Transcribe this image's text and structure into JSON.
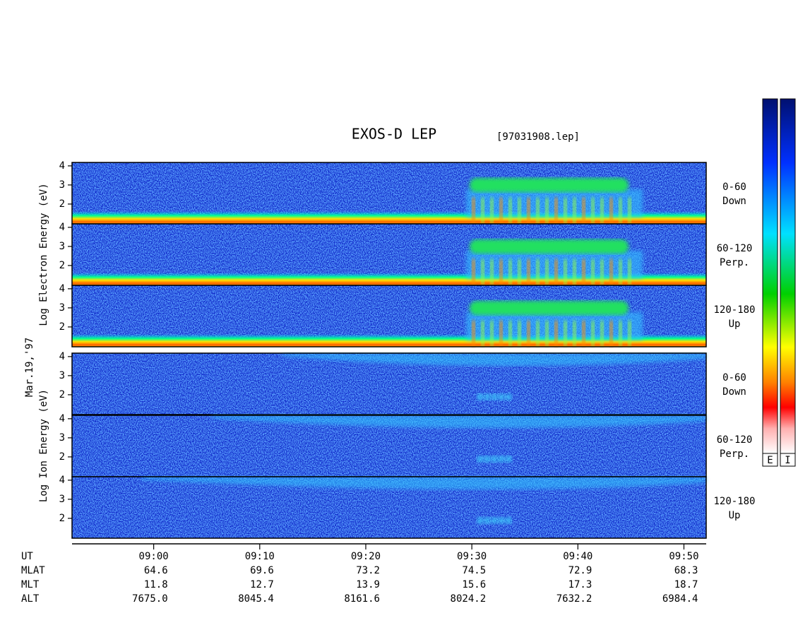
{
  "chart_data": {
    "type": "spectrogram",
    "title": "EXOS-D LEP",
    "subtitle": "[97031908.lep]",
    "date_label": "Mar.19,'97",
    "xlim": [
      532.3,
      592.1
    ],
    "xticks": [
      {
        "value": 540,
        "label": "09:00"
      },
      {
        "value": 550,
        "label": "09:10"
      },
      {
        "value": 560,
        "label": "09:20"
      },
      {
        "value": 570,
        "label": "09:30"
      },
      {
        "value": 580,
        "label": "09:40"
      },
      {
        "value": 590,
        "label": "09:50"
      }
    ],
    "ylim": [
      0.96,
      4.18
    ],
    "yticks": [
      2,
      3,
      4
    ],
    "groups": [
      {
        "ylabel": "Log  Electron  Energy (eV)",
        "species": "E",
        "panels": [
          {
            "angle": "0-60",
            "direction": "Down"
          },
          {
            "angle": "60-120",
            "direction": "Perp."
          },
          {
            "angle": "120-180",
            "direction": "Up"
          }
        ]
      },
      {
        "ylabel": "Log  Ion  Energy (eV)",
        "species": "I",
        "panels": [
          {
            "angle": "0-60",
            "direction": "Down"
          },
          {
            "angle": "60-120",
            "direction": "Perp."
          },
          {
            "angle": "120-180",
            "direction": "Up"
          }
        ]
      }
    ],
    "ephemeris": {
      "x_name": "UT",
      "rows": [
        {
          "name": "MLAT",
          "values": [
            64.6,
            69.6,
            73.2,
            74.5,
            72.9,
            68.3
          ]
        },
        {
          "name": "MLT",
          "values": [
            11.8,
            12.7,
            13.9,
            15.6,
            17.3,
            18.7
          ]
        },
        {
          "name": "ALT",
          "values": [
            "7675.0",
            "8045.4",
            "8161.6",
            "8024.2",
            "7632.2",
            "6984.4"
          ]
        }
      ]
    }
  }
}
